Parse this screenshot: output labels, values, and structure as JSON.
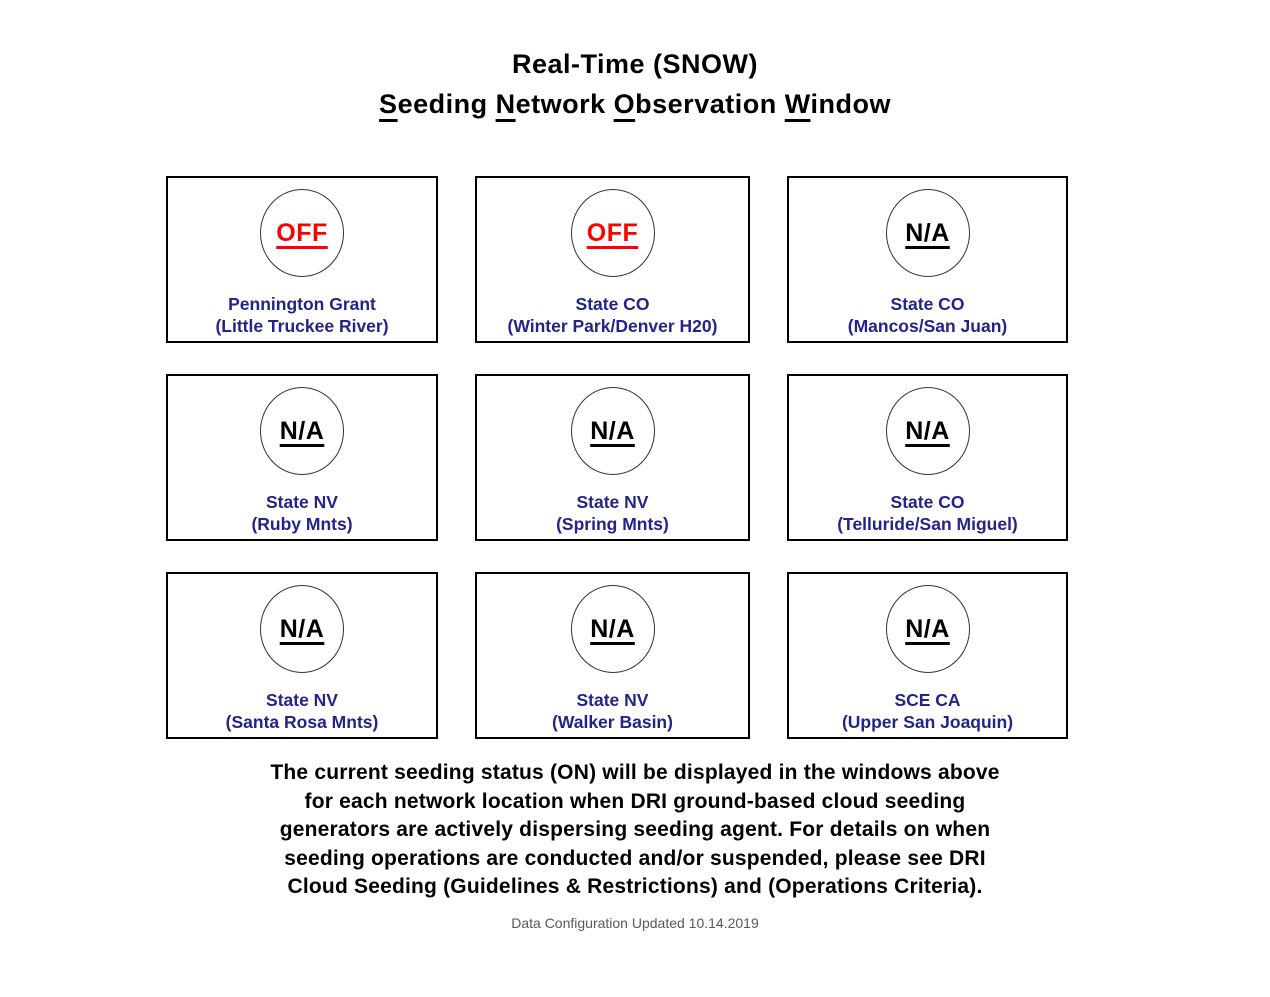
{
  "colors": {
    "status_off": "#FF0000",
    "status_na": "#000000",
    "location_text": "#23238B",
    "title_text": "#000000",
    "footer_note_text": "#595959"
  },
  "title": {
    "line1": "Real-Time (SNOW)",
    "line2": [
      {
        "initial": "S",
        "rest": "eeding"
      },
      {
        "initial": "N",
        "rest": "etwork"
      },
      {
        "initial": "O",
        "rest": "bservation"
      },
      {
        "initial": "W",
        "rest": "indow"
      }
    ]
  },
  "boxes": [
    {
      "status": "OFF",
      "status_color": "#FF0000",
      "line1": "Pennington Grant",
      "line2": "(Little Truckee River)"
    },
    {
      "status": "OFF",
      "status_color": "#FF0000",
      "line1": "State CO",
      "line2": "(Winter Park/Denver H20)"
    },
    {
      "status": "N/A",
      "status_color": "#000000",
      "line1": "State CO",
      "line2": "(Mancos/San Juan)"
    },
    {
      "status": "N/A",
      "status_color": "#000000",
      "line1": "State NV",
      "line2": "(Ruby Mnts)"
    },
    {
      "status": "N/A",
      "status_color": "#000000",
      "line1": "State NV",
      "line2": "(Spring Mnts)"
    },
    {
      "status": "N/A",
      "status_color": "#000000",
      "line1": "State CO",
      "line2": "(Telluride/San Miguel)"
    },
    {
      "status": "N/A",
      "status_color": "#000000",
      "line1": "State NV",
      "line2": "(Santa Rosa Mnts)"
    },
    {
      "status": "N/A",
      "status_color": "#000000",
      "line1": "State NV",
      "line2": "(Walker Basin)"
    },
    {
      "status": "N/A",
      "status_color": "#000000",
      "line1": "SCE CA",
      "line2": "(Upper San Joaquin)"
    }
  ],
  "footer": {
    "lines": [
      "The current seeding status (ON) will be displayed in the windows above",
      "for each network location when DRI ground-based cloud seeding",
      "generators are actively dispersing seeding agent. For details on when",
      "seeding operations are conducted and/or suspended, please see DRI",
      "Cloud Seeding (Guidelines & Restrictions) and (Operations Criteria)."
    ],
    "note": "Data Configuration Updated 10.14.2019"
  }
}
